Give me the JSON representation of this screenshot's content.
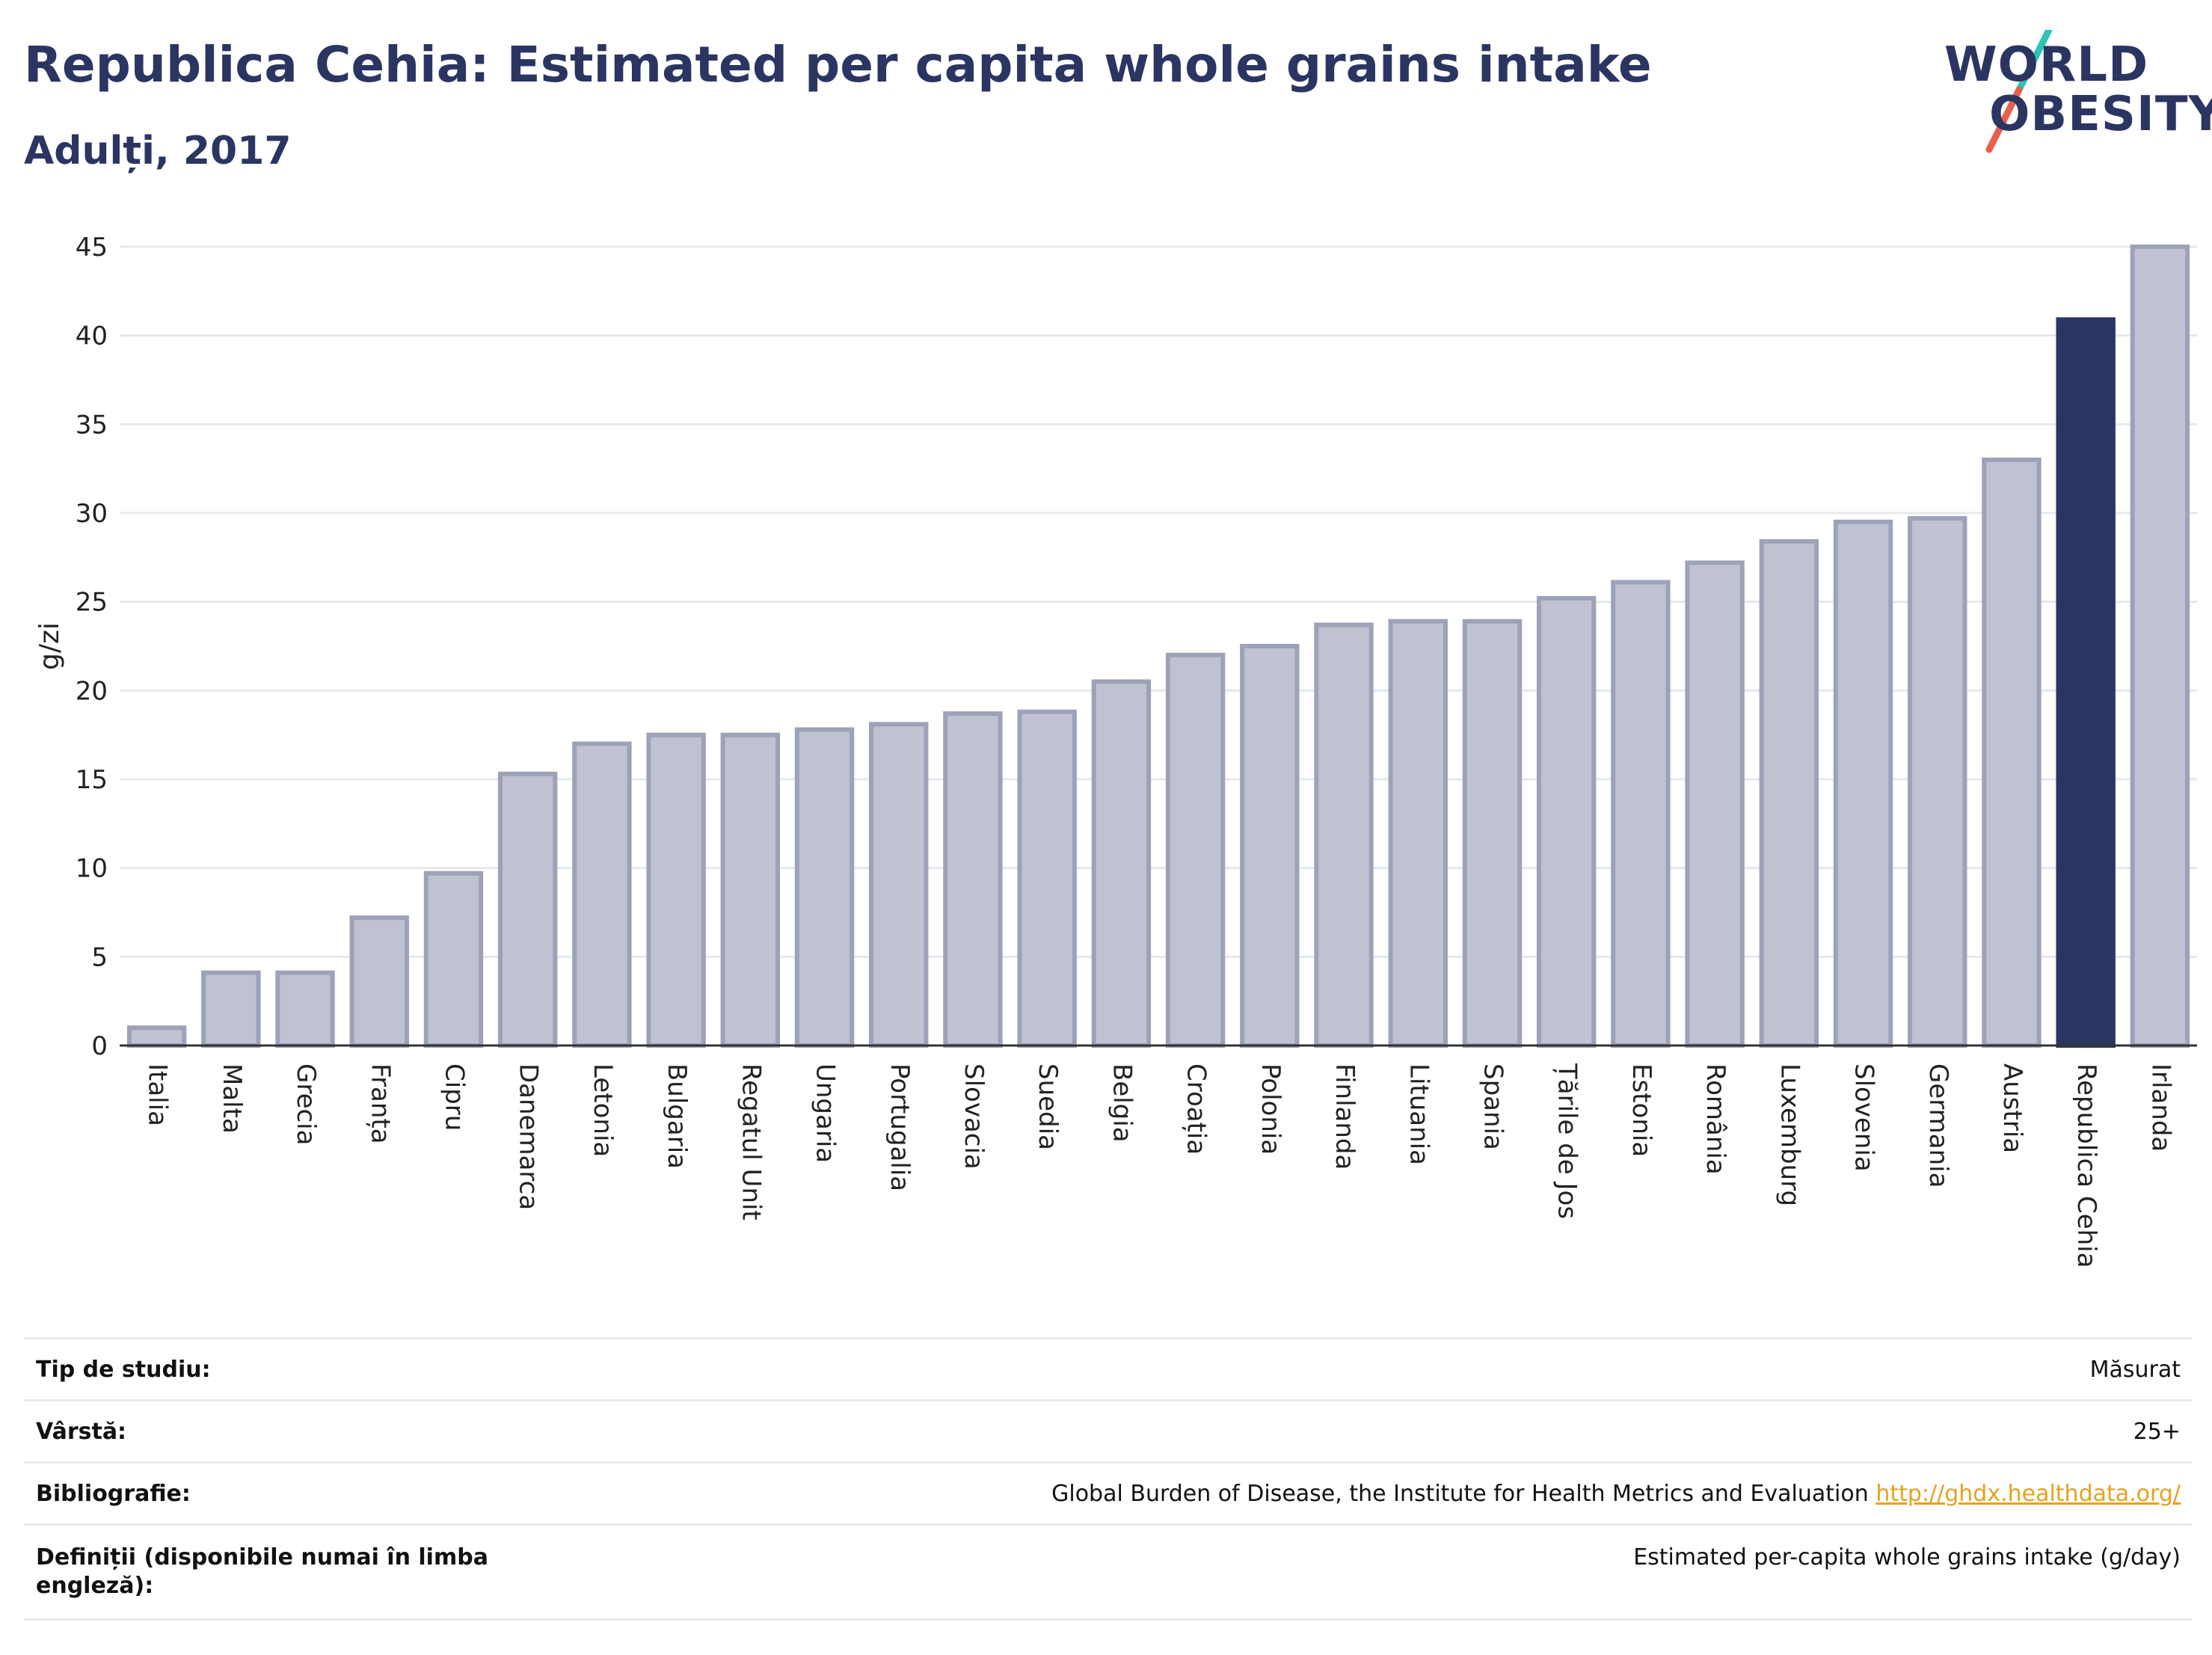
{
  "header": {
    "title": "Republica Cehia: Estimated per capita whole grains intake",
    "subtitle": "Adulți, 2017"
  },
  "logo": {
    "line1": "WORLD",
    "line2": "OBESITY",
    "colors": {
      "text": "#2b3562",
      "slash_top": "#2ec4b6",
      "slash_bottom": "#e8604c"
    }
  },
  "chart_data": {
    "type": "bar",
    "title": "Republica Cehia: Estimated per capita whole grains intake",
    "subtitle": "Adulți, 2017",
    "ylabel": "g/zi",
    "xlabel": "",
    "ylim": [
      0,
      45
    ],
    "yticks": [
      0,
      5,
      10,
      15,
      20,
      25,
      30,
      35,
      40,
      45
    ],
    "grid": true,
    "highlight": "Republica Cehia",
    "colors": {
      "bar": "#bfc2d0",
      "bar_border": "#9da2b8",
      "highlight": "#2b3562",
      "grid": "#e6e8ee"
    },
    "categories": [
      "Italia",
      "Malta",
      "Grecia",
      "Franța",
      "Cipru",
      "Danemarca",
      "Letonia",
      "Bulgaria",
      "Regatul Unit",
      "Ungaria",
      "Portugalia",
      "Slovacia",
      "Suedia",
      "Belgia",
      "Croația",
      "Polonia",
      "Finlanda",
      "Lituania",
      "Spania",
      "Țările de Jos",
      "Estonia",
      "România",
      "Luxemburg",
      "Slovenia",
      "Germania",
      "Austria",
      "Republica Cehia",
      "Irlanda"
    ],
    "values": [
      1.0,
      4.1,
      4.1,
      7.2,
      9.7,
      15.3,
      17.0,
      17.5,
      17.5,
      17.8,
      18.1,
      18.7,
      18.8,
      20.5,
      22.0,
      22.5,
      23.7,
      23.9,
      23.9,
      25.2,
      26.1,
      27.2,
      28.4,
      29.5,
      29.7,
      33.0,
      40.9,
      45.0
    ]
  },
  "info": {
    "rows": [
      {
        "label": "Tip de studiu:",
        "value": "Măsurat"
      },
      {
        "label": "Vârstă:",
        "value": "25+"
      },
      {
        "label": "Bibliografie:",
        "value": "Global Burden of Disease, the Institute for Health Metrics and Evaluation",
        "link": "http://ghdx.healthdata.org/"
      },
      {
        "label": "Definiții (disponibile numai în limba engleză):",
        "value": "Estimated per-capita whole grains intake (g/day)"
      }
    ]
  }
}
